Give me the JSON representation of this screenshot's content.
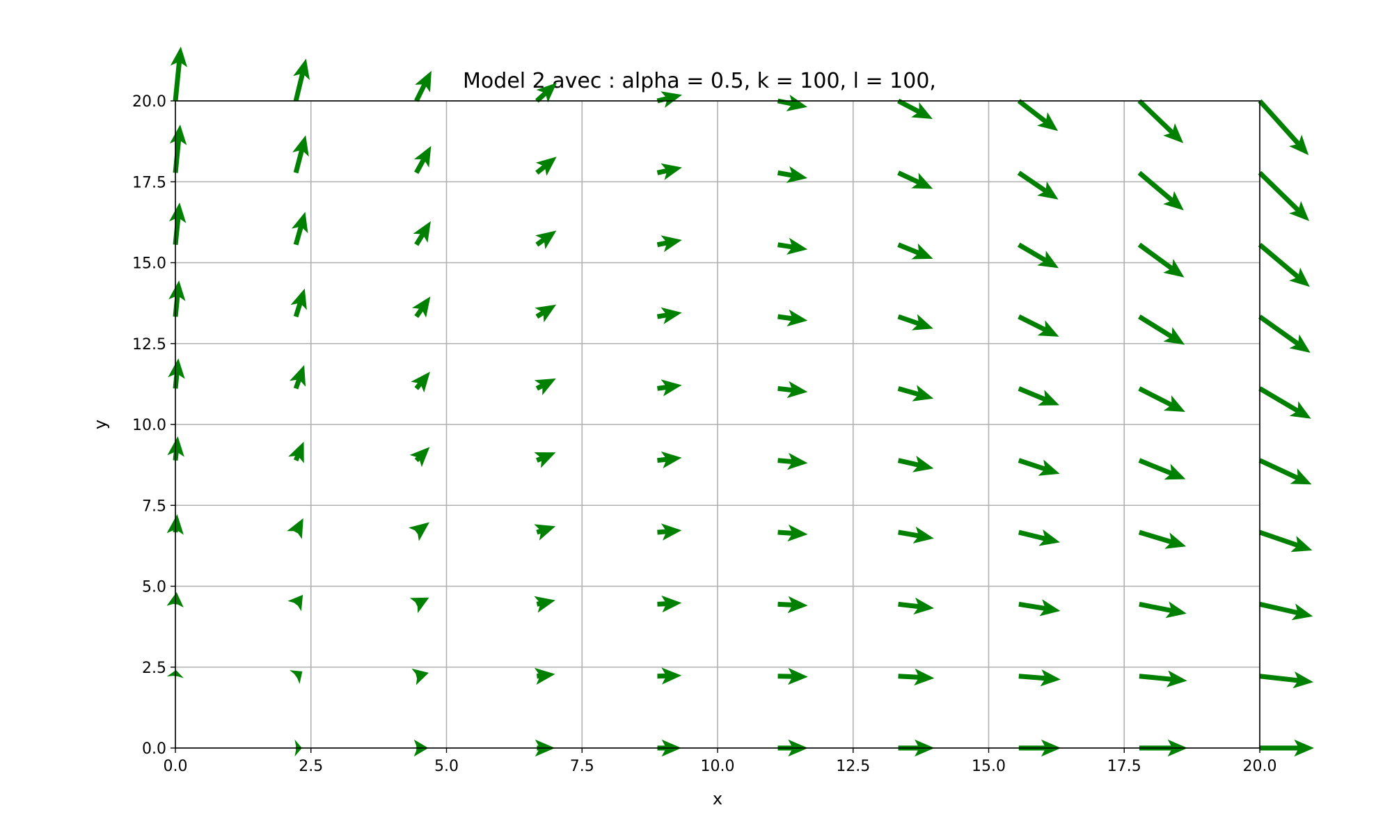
{
  "chart_data": {
    "type": "quiver",
    "title": "Model 2 avec : alpha = 0.5, k = 100, l = 100,",
    "xlabel": "x",
    "ylabel": "y",
    "xlim": [
      0.0,
      20.0
    ],
    "ylim": [
      0.0,
      20.0
    ],
    "xticks": [
      "0.0",
      "2.5",
      "5.0",
      "7.5",
      "10.0",
      "12.5",
      "15.0",
      "17.5",
      "20.0"
    ],
    "yticks": [
      "0.0",
      "2.5",
      "5.0",
      "7.5",
      "10.0",
      "12.5",
      "15.0",
      "17.5",
      "20.0"
    ],
    "grid": true,
    "arrow_color": "#008000",
    "x": [
      0.0,
      2.222,
      4.444,
      6.667,
      8.889,
      11.111,
      13.333,
      15.556,
      17.778,
      20.0
    ],
    "y": [
      0.0,
      2.222,
      4.444,
      6.667,
      8.889,
      11.111,
      13.333,
      15.556,
      17.778,
      20.0
    ],
    "vectors_note": "u = 0.5*x + 0.05*y*(1 - x/10) ; v = 0.5*y*(1 - x/10), evaluated at each grid point"
  }
}
